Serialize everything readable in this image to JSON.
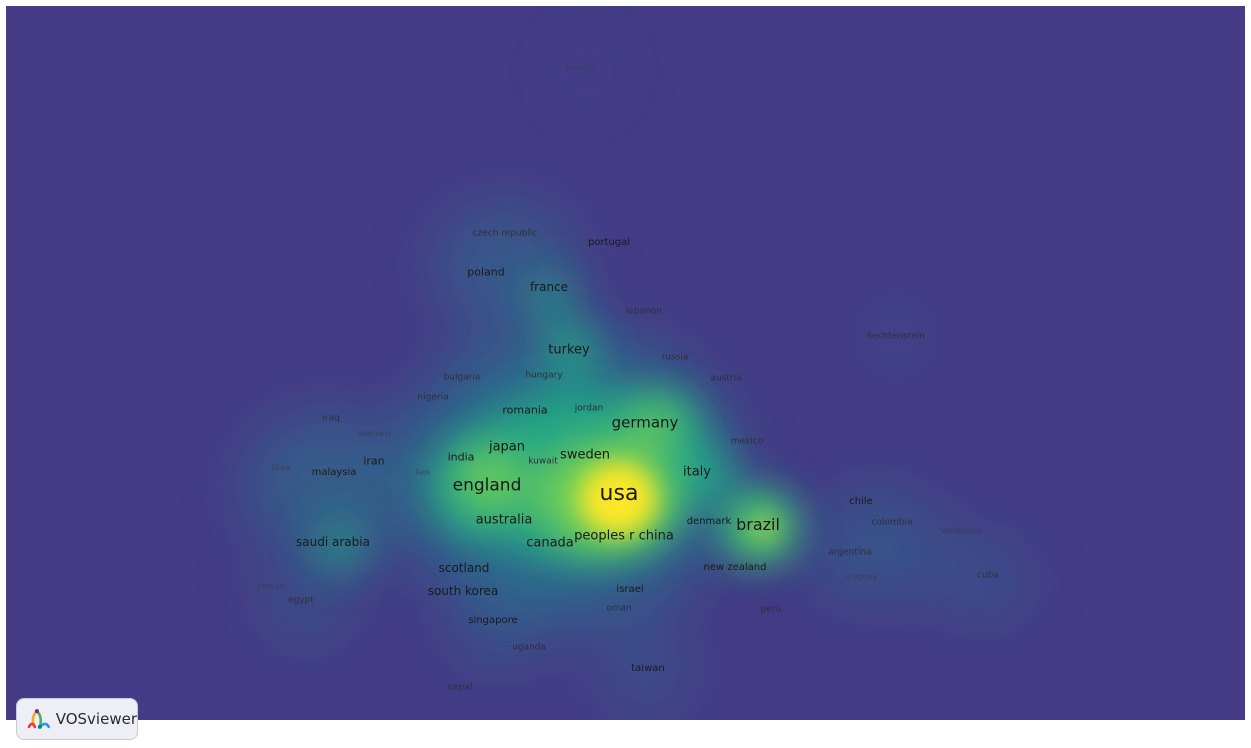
{
  "app": {
    "brand_name": "VOSviewer",
    "logo_icon": "vosviewer-logo-icon"
  },
  "view": {
    "type": "density-visualization",
    "background_color": "#453b86"
  },
  "colors": {
    "density_scale": [
      "#453b86",
      "#2c728e",
      "#21a585",
      "#75d054",
      "#fde725"
    ],
    "label_dark": "#1a1a1a",
    "label_mid": "#2e2e3c",
    "label_faint": "#3c3c5a"
  },
  "items": [
    {
      "label": "usa",
      "weight": 1.0
    },
    {
      "label": "england",
      "weight": 0.6
    },
    {
      "label": "germany",
      "weight": 0.5
    },
    {
      "label": "brazil",
      "weight": 0.45
    },
    {
      "label": "italy",
      "weight": 0.4
    },
    {
      "label": "japan",
      "weight": 0.4
    },
    {
      "label": "peoples r china",
      "weight": 0.42
    },
    {
      "label": "canada",
      "weight": 0.4
    },
    {
      "label": "sweden",
      "weight": 0.35
    },
    {
      "label": "australia",
      "weight": 0.35
    },
    {
      "label": "turkey",
      "weight": 0.32
    },
    {
      "label": "saudi arabia",
      "weight": 0.25
    },
    {
      "label": "south korea",
      "weight": 0.25
    },
    {
      "label": "scotland",
      "weight": 0.22
    },
    {
      "label": "france",
      "weight": 0.25
    },
    {
      "label": "poland",
      "weight": 0.22
    },
    {
      "label": "portugal",
      "weight": 0.2
    },
    {
      "label": "czech republic",
      "weight": 0.18
    },
    {
      "label": "romania",
      "weight": 0.2
    },
    {
      "label": "india",
      "weight": 0.2
    },
    {
      "label": "iran",
      "weight": 0.2
    },
    {
      "label": "malaysia",
      "weight": 0.18
    },
    {
      "label": "taiwan",
      "weight": 0.18
    },
    {
      "label": "new zealand",
      "weight": 0.18
    },
    {
      "label": "denmark",
      "weight": 0.2
    },
    {
      "label": "mexico",
      "weight": 0.16
    },
    {
      "label": "austria",
      "weight": 0.16
    },
    {
      "label": "russia",
      "weight": 0.15
    },
    {
      "label": "lebanon",
      "weight": 0.14
    },
    {
      "label": "hungary",
      "weight": 0.15
    },
    {
      "label": "bulgaria",
      "weight": 0.14
    },
    {
      "label": "jordan",
      "weight": 0.15
    },
    {
      "label": "kuwait",
      "weight": 0.16
    },
    {
      "label": "nigeria",
      "weight": 0.13
    },
    {
      "label": "iraq",
      "weight": 0.13
    },
    {
      "label": "vietnam",
      "weight": 0.1
    },
    {
      "label": "libya",
      "weight": 0.12
    },
    {
      "label": "laos",
      "weight": 0.1
    },
    {
      "label": "chile",
      "weight": 0.15
    },
    {
      "label": "colombia",
      "weight": 0.15
    },
    {
      "label": "argentina",
      "weight": 0.14
    },
    {
      "label": "uruguay",
      "weight": 0.1
    },
    {
      "label": "venezuela",
      "weight": 0.12
    },
    {
      "label": "cuba",
      "weight": 0.14
    },
    {
      "label": "liechtenstein",
      "weight": 0.12
    },
    {
      "label": "morocco",
      "weight": 0.1
    },
    {
      "label": "israel",
      "weight": 0.16
    },
    {
      "label": "oman",
      "weight": 0.14
    },
    {
      "label": "peru",
      "weight": 0.13
    },
    {
      "label": "singapore",
      "weight": 0.17
    },
    {
      "label": "uganda",
      "weight": 0.13
    },
    {
      "label": "nepal",
      "weight": 0.12
    },
    {
      "label": "yemen",
      "weight": 0.12
    },
    {
      "label": "egypt",
      "weight": 0.13
    }
  ]
}
